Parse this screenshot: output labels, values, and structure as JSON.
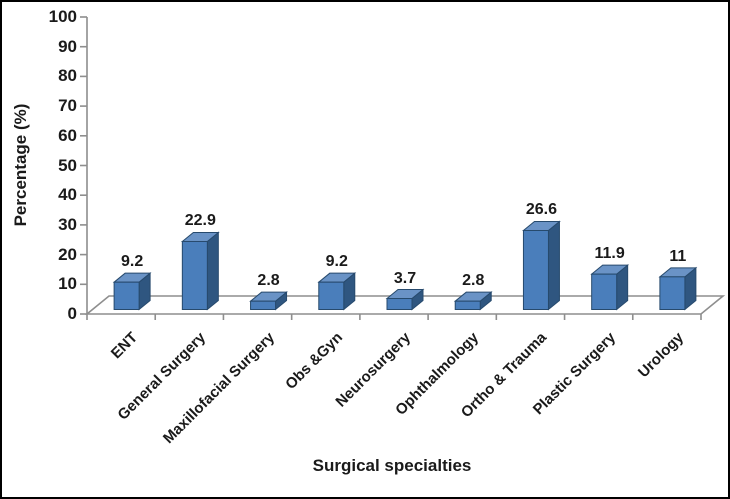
{
  "figure": {
    "background": "#ffffff",
    "border_color": "#000000"
  },
  "chart_data": {
    "type": "bar",
    "style": "3d-column",
    "title": "",
    "xlabel": "Surgical specialties",
    "ylabel": "Percentage (%)",
    "categories": [
      "ENT",
      "General Surgery",
      "Maxillofacial Surgery",
      "Obs &Gyn",
      "Neurosurgery",
      "Ophthalmology",
      "Ortho & Trauma",
      "Plastic Surgery",
      "Urology"
    ],
    "values": [
      9.2,
      22.9,
      2.8,
      9.2,
      3.7,
      2.8,
      26.6,
      11.9,
      11
    ],
    "data_labels": [
      "9.2",
      "22.9",
      "2.8",
      "9.2",
      "3.7",
      "2.8",
      "26.6",
      "11.9",
      "11"
    ],
    "ylim": [
      0,
      100
    ],
    "ytick_step": 10,
    "ytick_labels": [
      "0",
      "10",
      "20",
      "30",
      "40",
      "50",
      "60",
      "70",
      "80",
      "90",
      "100"
    ],
    "grid": false,
    "legend": "none",
    "colors": {
      "bar_front": "#4a7ebb",
      "bar_top": "#6a93c6",
      "bar_side": "#2f5680",
      "bar_outline": "#274a6d",
      "axis": "#8e8e8e",
      "text": "#1a1a1a"
    }
  }
}
